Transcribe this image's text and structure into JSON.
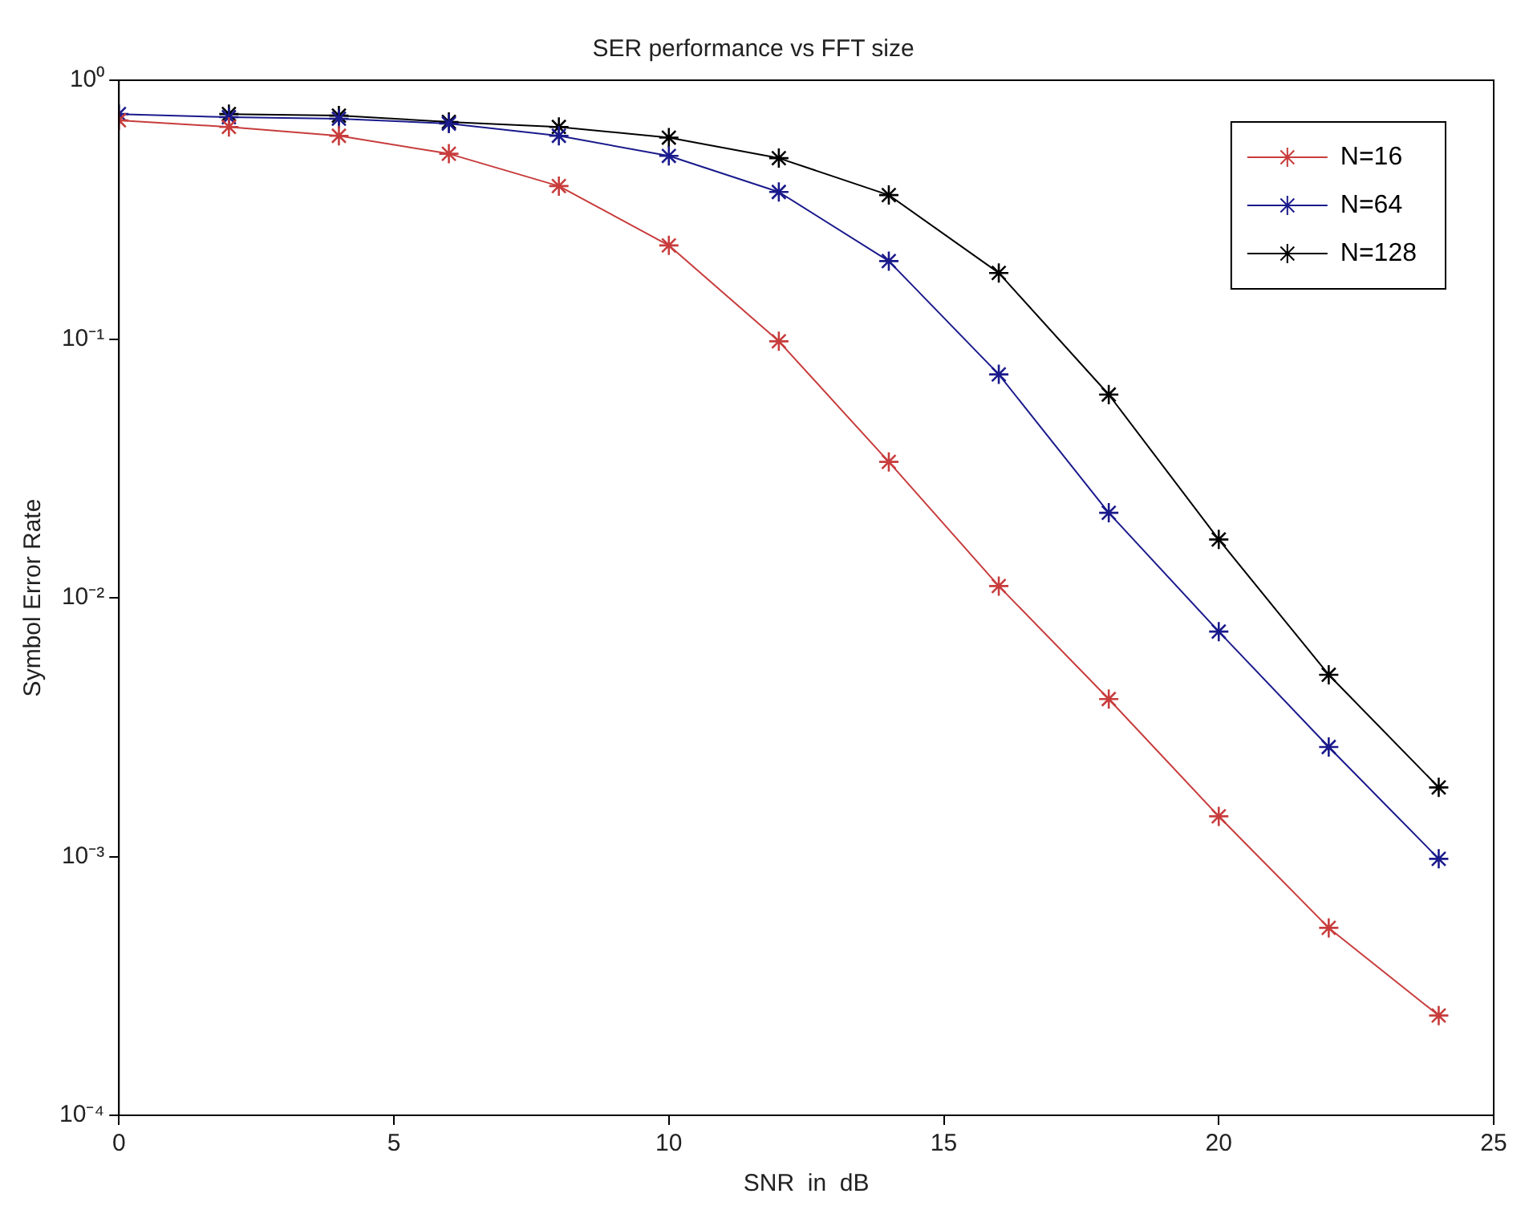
{
  "chart_data": {
    "type": "line",
    "title": "SER performance vs FFT size",
    "xlabel": "SNR  in  dB",
    "ylabel": "Symbol Error Rate",
    "x": [
      0,
      2,
      4,
      6,
      8,
      10,
      12,
      14,
      16,
      18,
      20,
      22,
      24
    ],
    "series": [
      {
        "name": "N=16",
        "color": "#c83c3c",
        "values": [
          0.7,
          0.66,
          0.61,
          0.52,
          0.39,
          0.23,
          0.098,
          0.0335,
          0.0111,
          0.00406,
          0.00143,
          0.00053,
          0.000243
        ]
      },
      {
        "name": "N=64",
        "color": "#1a1a8c",
        "values": [
          0.74,
          0.72,
          0.71,
          0.68,
          0.61,
          0.51,
          0.37,
          0.2,
          0.073,
          0.0213,
          0.0074,
          0.00265,
          0.00098
        ]
      },
      {
        "name": "N=128",
        "color": "#000000",
        "values": [
          null,
          0.74,
          0.73,
          0.69,
          0.66,
          0.6,
          0.5,
          0.36,
          0.18,
          0.061,
          0.0168,
          0.00504,
          0.00185
        ]
      }
    ],
    "xlim": [
      0,
      25
    ],
    "xticks": [
      0,
      5,
      10,
      15,
      20,
      25
    ],
    "ylim": [
      0.0001,
      1
    ],
    "yticks": [
      {
        "value": 0.0001,
        "label": "10⁻⁴"
      },
      {
        "value": 0.001,
        "label": "10⁻³"
      },
      {
        "value": 0.01,
        "label": "10⁻²"
      },
      {
        "value": 0.1,
        "label": "10⁻¹"
      },
      {
        "value": 1,
        "label": "10⁰"
      }
    ],
    "log": "y",
    "grid": false,
    "legend": "top right",
    "marker": "cross",
    "line_style": "solid"
  }
}
